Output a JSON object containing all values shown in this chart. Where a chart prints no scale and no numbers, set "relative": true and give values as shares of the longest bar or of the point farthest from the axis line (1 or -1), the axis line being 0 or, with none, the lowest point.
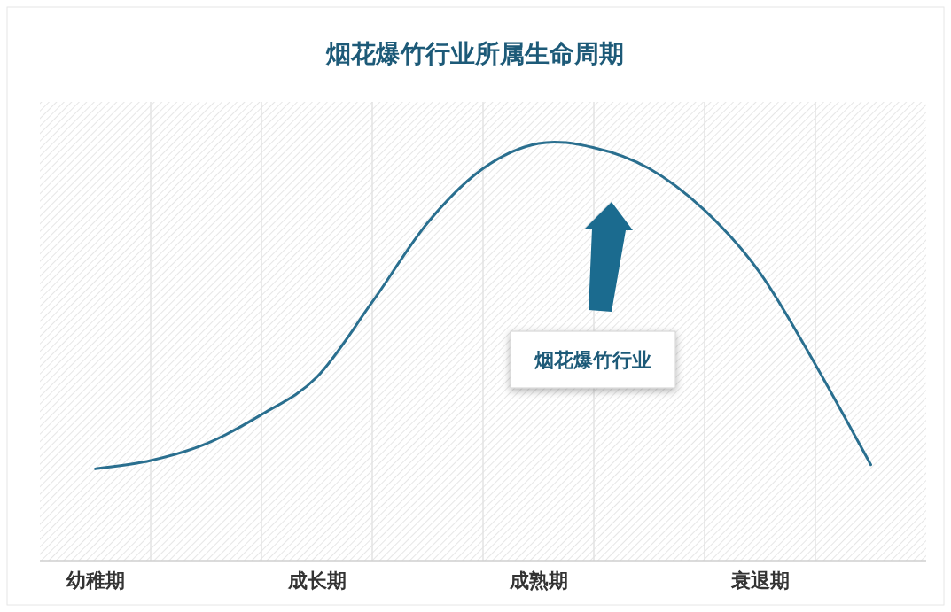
{
  "chart_data": {
    "type": "line",
    "title": "烟花爆竹行业所属生命周期",
    "relative": true,
    "grid": "x",
    "marker": "none",
    "line_style": "solid",
    "categories": [
      "幼稚期",
      null,
      null,
      null,
      "成长期",
      null,
      null,
      null,
      "成熟期",
      null,
      null,
      null,
      "衰退期",
      null,
      null
    ],
    "series": [
      {
        "color": "#2a6f8f",
        "values": [
          0.22,
          0.24,
          0.28,
          0.35,
          0.44,
          0.62,
          0.81,
          0.94,
          1,
          0.99,
          0.94,
          0.84,
          0.69,
          0.47,
          0.23
        ]
      }
    ],
    "annotations": [
      "烟花爆竹行业"
    ]
  }
}
